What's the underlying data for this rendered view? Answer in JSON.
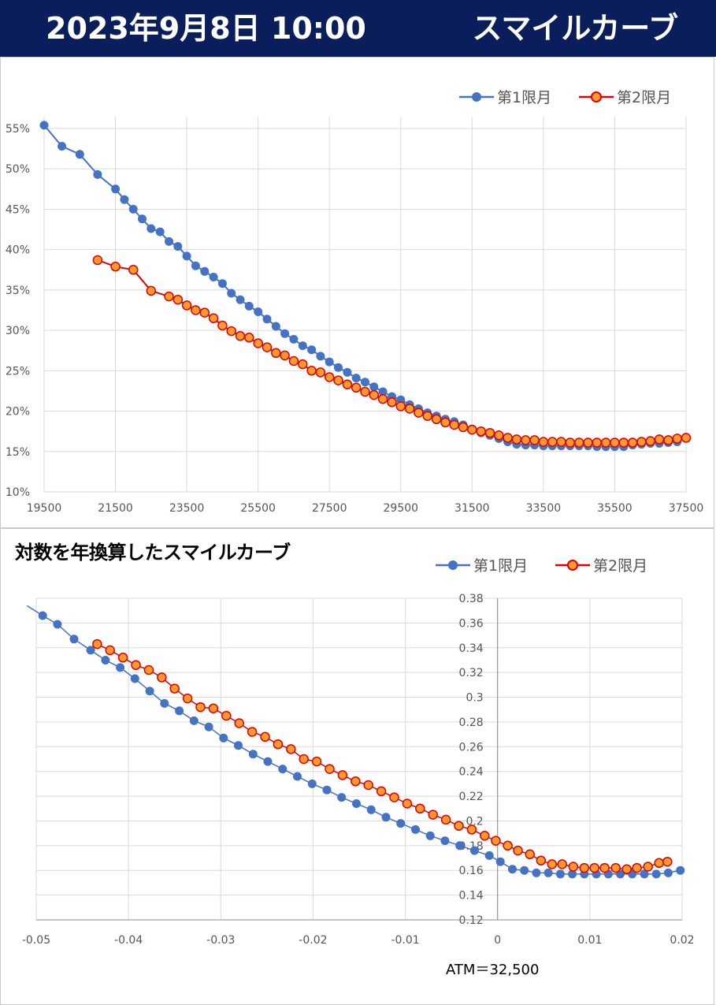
{
  "header": {
    "date_text": "2023年9月8日 10:00",
    "title": "スマイルカーブ"
  },
  "colors": {
    "header_bg": "#0a1e5c",
    "series1": "#4472c4",
    "series2_line": "#e00000",
    "series2_fill": "#ff9a2e",
    "grid": "#d9d9d9"
  },
  "chart2_title": "対数を年換算したスマイルカーブ",
  "atm_note": "ATM＝32,500",
  "chart_data": [
    {
      "type": "line",
      "title": "スマイルカーブ",
      "xlim": [
        19500,
        37500
      ],
      "ylim": [
        0.1,
        0.55
      ],
      "x_ticks": [
        19500,
        21500,
        23500,
        25500,
        27500,
        29500,
        31500,
        33500,
        35500,
        37500
      ],
      "y_ticks": [
        0.1,
        0.15,
        0.2,
        0.25,
        0.3,
        0.35,
        0.4,
        0.45,
        0.5,
        0.55
      ],
      "x_tick_labels": [
        "19500",
        "21500",
        "23500",
        "25500",
        "27500",
        "29500",
        "31500",
        "33500",
        "35500",
        "37500"
      ],
      "y_tick_labels": [
        "10%",
        "15%",
        "20%",
        "25%",
        "30%",
        "35%",
        "40%",
        "45%",
        "50%",
        "55%"
      ],
      "legend_position": "top-right",
      "series": [
        {
          "name": "第1限月",
          "x": [
            19500,
            20000,
            20500,
            21000,
            21500,
            21750,
            22000,
            22250,
            22500,
            22750,
            23000,
            23250,
            23500,
            23750,
            24000,
            24250,
            24500,
            24750,
            25000,
            25250,
            25500,
            25750,
            26000,
            26250,
            26500,
            26750,
            27000,
            27250,
            27500,
            27750,
            28000,
            28250,
            28500,
            28750,
            29000,
            29250,
            29500,
            29750,
            30000,
            30250,
            30500,
            30750,
            31000,
            31250,
            31500,
            31750,
            32000,
            32250,
            32500,
            32750,
            33000,
            33250,
            33500,
            33750,
            34000,
            34250,
            34500,
            34750,
            35000,
            35250,
            35500,
            35750,
            36000,
            36250,
            36500,
            36750,
            37000,
            37250
          ],
          "y": [
            0.554,
            0.528,
            0.518,
            0.493,
            0.475,
            0.462,
            0.45,
            0.438,
            0.426,
            0.422,
            0.41,
            0.404,
            0.392,
            0.38,
            0.373,
            0.366,
            0.358,
            0.346,
            0.338,
            0.33,
            0.323,
            0.314,
            0.305,
            0.296,
            0.289,
            0.281,
            0.276,
            0.268,
            0.261,
            0.254,
            0.248,
            0.241,
            0.236,
            0.23,
            0.224,
            0.218,
            0.214,
            0.208,
            0.203,
            0.198,
            0.194,
            0.19,
            0.187,
            0.183,
            0.178,
            0.173,
            0.17,
            0.166,
            0.162,
            0.159,
            0.158,
            0.158,
            0.157,
            0.157,
            0.157,
            0.157,
            0.157,
            0.157,
            0.156,
            0.156,
            0.156,
            0.156,
            0.158,
            0.159,
            0.16,
            0.16,
            0.161,
            0.162
          ]
        },
        {
          "name": "第2限月",
          "x": [
            21000,
            21500,
            22000,
            22500,
            23000,
            23250,
            23500,
            23750,
            24000,
            24250,
            24500,
            24750,
            25000,
            25250,
            25500,
            25750,
            26000,
            26250,
            26500,
            26750,
            27000,
            27250,
            27500,
            27750,
            28000,
            28250,
            28500,
            28750,
            29000,
            29250,
            29500,
            29750,
            30000,
            30250,
            30500,
            30750,
            31000,
            31250,
            31500,
            31750,
            32000,
            32250,
            32500,
            32750,
            33000,
            33250,
            33500,
            33750,
            34000,
            34250,
            34500,
            34750,
            35000,
            35250,
            35500,
            35750,
            36000,
            36250,
            36500,
            36750,
            37000,
            37250,
            37500
          ],
          "y": [
            0.387,
            0.379,
            0.375,
            0.349,
            0.342,
            0.338,
            0.331,
            0.325,
            0.322,
            0.315,
            0.306,
            0.299,
            0.293,
            0.291,
            0.284,
            0.279,
            0.272,
            0.269,
            0.262,
            0.258,
            0.25,
            0.248,
            0.242,
            0.238,
            0.233,
            0.229,
            0.224,
            0.22,
            0.215,
            0.211,
            0.206,
            0.203,
            0.198,
            0.194,
            0.19,
            0.186,
            0.183,
            0.18,
            0.177,
            0.175,
            0.173,
            0.17,
            0.167,
            0.165,
            0.164,
            0.164,
            0.162,
            0.162,
            0.162,
            0.161,
            0.161,
            0.161,
            0.161,
            0.161,
            0.161,
            0.161,
            0.161,
            0.162,
            0.163,
            0.165,
            0.164,
            0.166,
            0.167
          ]
        }
      ]
    },
    {
      "type": "scatter",
      "title": "対数を年換算したスマイルカーブ",
      "xlim": [
        -0.05,
        0.02
      ],
      "ylim": [
        0.12,
        0.38
      ],
      "x_ticks": [
        -0.05,
        -0.04,
        -0.03,
        -0.02,
        -0.01,
        0,
        0.01,
        0.02
      ],
      "y_ticks": [
        0.12,
        0.14,
        0.16,
        0.18,
        0.2,
        0.22,
        0.24,
        0.26,
        0.28,
        0.3,
        0.32,
        0.34,
        0.36,
        0.38
      ],
      "x_tick_labels": [
        "-0.05",
        "-0.04",
        "-0.03",
        "-0.02",
        "-0.01",
        "0",
        "0.01",
        "0.02"
      ],
      "y_tick_labels": [
        "0.12",
        "0.14",
        "0.16",
        "0.18",
        "0.2",
        "0.22",
        "0.24",
        "0.26",
        "0.28",
        "0.3",
        "0.32",
        "0.34",
        "0.36",
        "0.38"
      ],
      "legend_position": "top-right",
      "series": [
        {
          "name": "第1限月",
          "x": [
            -0.051,
            -0.0493,
            -0.0477,
            -0.0459,
            -0.0441,
            -0.0425,
            -0.0409,
            -0.0393,
            -0.0377,
            -0.0361,
            -0.0345,
            -0.0329,
            -0.0313,
            -0.0297,
            -0.0281,
            -0.0265,
            -0.0249,
            -0.0233,
            -0.0217,
            -0.0201,
            -0.0185,
            -0.0169,
            -0.0153,
            -0.0137,
            -0.0121,
            -0.0105,
            -0.0089,
            -0.0073,
            -0.0057,
            -0.0041,
            -0.0025,
            -0.0009,
            0.0003,
            0.0016,
            0.0029,
            0.0042,
            0.0055,
            0.0068,
            0.0081,
            0.0094,
            0.0107,
            0.012,
            0.0133,
            0.0146,
            0.0159,
            0.0172,
            0.0185,
            0.0198
          ],
          "y": [
            0.374,
            0.366,
            0.359,
            0.347,
            0.338,
            0.33,
            0.324,
            0.315,
            0.305,
            0.295,
            0.289,
            0.281,
            0.276,
            0.267,
            0.261,
            0.254,
            0.248,
            0.242,
            0.236,
            0.23,
            0.225,
            0.219,
            0.214,
            0.209,
            0.203,
            0.198,
            0.193,
            0.188,
            0.184,
            0.18,
            0.176,
            0.172,
            0.167,
            0.161,
            0.16,
            0.158,
            0.158,
            0.157,
            0.157,
            0.157,
            0.157,
            0.157,
            0.157,
            0.157,
            0.157,
            0.157,
            0.158,
            0.16
          ]
        },
        {
          "name": "第2限月",
          "x": [
            -0.0434,
            -0.042,
            -0.0406,
            -0.0392,
            -0.0378,
            -0.0364,
            -0.035,
            -0.0336,
            -0.0322,
            -0.0308,
            -0.0294,
            -0.028,
            -0.0266,
            -0.0252,
            -0.0238,
            -0.0224,
            -0.021,
            -0.0196,
            -0.0182,
            -0.0168,
            -0.0154,
            -0.014,
            -0.0126,
            -0.0112,
            -0.0098,
            -0.0084,
            -0.007,
            -0.0056,
            -0.0042,
            -0.0028,
            -0.0014,
            -0.0002,
            0.0011,
            0.0022,
            0.0035,
            0.0047,
            0.0059,
            0.007,
            0.0082,
            0.0094,
            0.0105,
            0.0116,
            0.0128,
            0.014,
            0.0151,
            0.0163,
            0.0175,
            0.0184
          ],
          "y": [
            0.343,
            0.338,
            0.332,
            0.326,
            0.322,
            0.316,
            0.307,
            0.299,
            0.292,
            0.291,
            0.285,
            0.279,
            0.272,
            0.268,
            0.262,
            0.258,
            0.25,
            0.248,
            0.242,
            0.237,
            0.232,
            0.229,
            0.224,
            0.219,
            0.214,
            0.21,
            0.205,
            0.201,
            0.196,
            0.193,
            0.188,
            0.184,
            0.18,
            0.176,
            0.173,
            0.168,
            0.165,
            0.165,
            0.163,
            0.162,
            0.162,
            0.162,
            0.162,
            0.161,
            0.162,
            0.163,
            0.166,
            0.167
          ]
        }
      ]
    }
  ]
}
